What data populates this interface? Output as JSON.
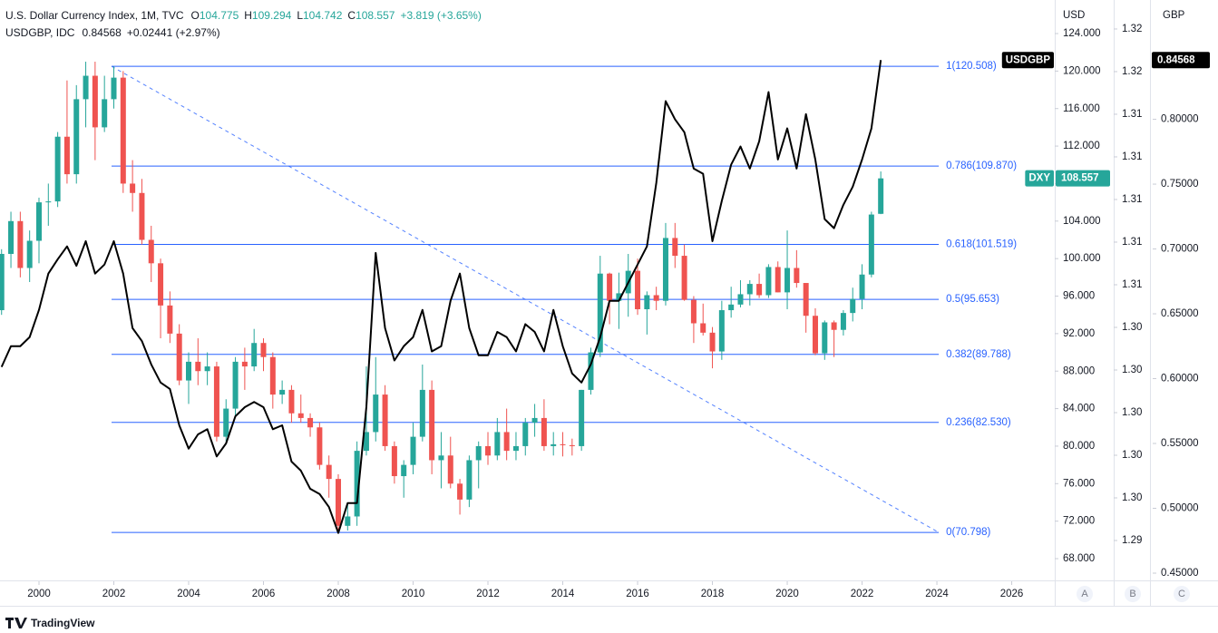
{
  "chart_data": {
    "type": "candlestick",
    "legend_header": {
      "dxy": {
        "title": "U.S. Dollar Currency Index, 1M, TVC",
        "fields": [
          {
            "label": "O",
            "value": "104.775"
          },
          {
            "label": "H",
            "value": "109.294"
          },
          {
            "label": "L",
            "value": "104.742"
          },
          {
            "label": "C",
            "value": "108.557"
          }
        ],
        "change": "+3.819 (+3.65%)"
      },
      "usdgbp": {
        "title": "USDGBP, IDC",
        "value": "0.84568",
        "change": "+0.02441 (+2.97%)"
      }
    },
    "x": [
      1999,
      1999.25,
      1999.5,
      1999.75,
      2000,
      2000.25,
      2000.5,
      2000.75,
      2001,
      2001.25,
      2001.5,
      2001.75,
      2002,
      2002.25,
      2002.5,
      2002.75,
      2003,
      2003.25,
      2003.5,
      2003.75,
      2004,
      2004.25,
      2004.5,
      2004.75,
      2005,
      2005.25,
      2005.5,
      2005.75,
      2006,
      2006.25,
      2006.5,
      2006.75,
      2007,
      2007.25,
      2007.5,
      2007.75,
      2008,
      2008.25,
      2008.5,
      2008.75,
      2009,
      2009.25,
      2009.5,
      2009.75,
      2010,
      2010.25,
      2010.5,
      2010.75,
      2011,
      2011.25,
      2011.5,
      2011.75,
      2012,
      2012.25,
      2012.5,
      2012.75,
      2013,
      2013.25,
      2013.5,
      2013.75,
      2014,
      2014.25,
      2014.5,
      2014.75,
      2015,
      2015.25,
      2015.5,
      2015.75,
      2016,
      2016.25,
      2016.5,
      2016.75,
      2017,
      2017.25,
      2017.5,
      2017.75,
      2018,
      2018.25,
      2018.5,
      2018.75,
      2019,
      2019.25,
      2019.5,
      2019.75,
      2020,
      2020.25,
      2020.5,
      2020.75,
      2021,
      2021.25,
      2021.5,
      2021.75,
      2022,
      2022.25,
      2022.5
    ],
    "series": [
      {
        "name": "DXY",
        "type": "candlestick",
        "axis": "y",
        "up_color": "#26a69a",
        "down_color": "#ef5350",
        "ohlc": [
          [
            94.5,
            101,
            94,
            100.5
          ],
          [
            100.5,
            105,
            99,
            104
          ],
          [
            104,
            105,
            98,
            99
          ],
          [
            99,
            103,
            97.5,
            101.9
          ],
          [
            101.9,
            106.5,
            99.5,
            106
          ],
          [
            106,
            108,
            103.5,
            106.1
          ],
          [
            106.1,
            113.5,
            105.5,
            113
          ],
          [
            113,
            119,
            108,
            109
          ],
          [
            109,
            118.5,
            108,
            117
          ],
          [
            117,
            121,
            114,
            119.5
          ],
          [
            119.5,
            121,
            110.5,
            114
          ],
          [
            114,
            119.5,
            113.5,
            117
          ],
          [
            117,
            120.5,
            116,
            119.3
          ],
          [
            119.3,
            120,
            107,
            108
          ],
          [
            108,
            110.5,
            105,
            107
          ],
          [
            107,
            108.5,
            101.5,
            102
          ],
          [
            102,
            103.5,
            97.5,
            99.5
          ],
          [
            99.5,
            100,
            91.5,
            95
          ],
          [
            95,
            96.5,
            91,
            92
          ],
          [
            92,
            93,
            86.5,
            87
          ],
          [
            87,
            90,
            84.5,
            89
          ],
          [
            89,
            91.5,
            86.5,
            88
          ],
          [
            88,
            90,
            86.5,
            88.5
          ],
          [
            88.5,
            89,
            80.5,
            81
          ],
          [
            81,
            85,
            80.5,
            84
          ],
          [
            84,
            89.5,
            83,
            89
          ],
          [
            89,
            90.5,
            86,
            88.5
          ],
          [
            88.5,
            92.5,
            88,
            91
          ],
          [
            91,
            91.5,
            88,
            89.5
          ],
          [
            89.5,
            90,
            84,
            85.5
          ],
          [
            85.5,
            87,
            84.5,
            86
          ],
          [
            86,
            86.5,
            82.5,
            83.5
          ],
          [
            83.5,
            85.5,
            82.5,
            83
          ],
          [
            83,
            83.5,
            81,
            82
          ],
          [
            82,
            82.5,
            77.5,
            78
          ],
          [
            78,
            79,
            74.5,
            76.5
          ],
          [
            76.5,
            77,
            70.7,
            71.5
          ],
          [
            71.5,
            74,
            71,
            72.5
          ],
          [
            72.5,
            80.5,
            71.5,
            79.5
          ],
          [
            79.5,
            88.5,
            79,
            81.5
          ],
          [
            81.5,
            89.5,
            80.5,
            85.5
          ],
          [
            85.5,
            86.5,
            79.5,
            80
          ],
          [
            80,
            80.5,
            76,
            76.8
          ],
          [
            76.8,
            78.5,
            74.5,
            78
          ],
          [
            78,
            82.5,
            77,
            81
          ],
          [
            81,
            88.7,
            80.5,
            86
          ],
          [
            86,
            87,
            77,
            78.5
          ],
          [
            78.5,
            81.5,
            75.5,
            79
          ],
          [
            79,
            81,
            75.5,
            76
          ],
          [
            76,
            76.5,
            72.7,
            74.3
          ],
          [
            74.3,
            79,
            73.5,
            78.5
          ],
          [
            78.5,
            80.5,
            75.5,
            80
          ],
          [
            80,
            81.5,
            78,
            79
          ],
          [
            79,
            83,
            78.5,
            81.5
          ],
          [
            81.5,
            84,
            78.5,
            79.5
          ],
          [
            79.5,
            81.5,
            78.5,
            80
          ],
          [
            80,
            83,
            79,
            82.5
          ],
          [
            82.5,
            84.5,
            81,
            83
          ],
          [
            83,
            85,
            79.5,
            80
          ],
          [
            80,
            81.5,
            79,
            80.2
          ],
          [
            80.2,
            81.5,
            78.9,
            80.1
          ],
          [
            80.1,
            80.8,
            79,
            80
          ],
          [
            80,
            86,
            79.5,
            86
          ],
          [
            86,
            90.5,
            85.5,
            90
          ],
          [
            90,
            100.3,
            89.5,
            98.4
          ],
          [
            98.4,
            98.5,
            93,
            95.5
          ],
          [
            95.5,
            98.5,
            92.5,
            96.3
          ],
          [
            96.3,
            100.5,
            93.8,
            98.7
          ],
          [
            98.7,
            100,
            94,
            94.6
          ],
          [
            94.6,
            96.5,
            91.9,
            96.1
          ],
          [
            96.1,
            97,
            94.5,
            95.5
          ],
          [
            95.5,
            103.8,
            95,
            102.2
          ],
          [
            102.2,
            103.8,
            99,
            100.3
          ],
          [
            100.3,
            101.5,
            95.5,
            95.6
          ],
          [
            95.6,
            96,
            91,
            93.1
          ],
          [
            93.1,
            95.2,
            91.8,
            92.1
          ],
          [
            92.1,
            92.7,
            88.3,
            90.1
          ],
          [
            90.1,
            95.5,
            89.2,
            94.5
          ],
          [
            94.5,
            97,
            93.7,
            95.1
          ],
          [
            95.1,
            97.7,
            94.8,
            96.2
          ],
          [
            96.2,
            97.7,
            95,
            97.3
          ],
          [
            97.3,
            98.4,
            95.8,
            96.1
          ],
          [
            96.1,
            99.4,
            95.8,
            99.1
          ],
          [
            99.1,
            99.7,
            96.4,
            96.4
          ],
          [
            96.4,
            103,
            94.6,
            99
          ],
          [
            99,
            100.9,
            96.9,
            97.4
          ],
          [
            97.4,
            97.4,
            92.1,
            93.9
          ],
          [
            93.9,
            94.7,
            89.7,
            89.9
          ],
          [
            89.9,
            93.4,
            89.2,
            93.2
          ],
          [
            93.2,
            93.4,
            89.5,
            92.4
          ],
          [
            92.4,
            94.5,
            91.8,
            94.2
          ],
          [
            94.2,
            96.9,
            93.3,
            95.7
          ],
          [
            95.7,
            99.4,
            94.6,
            98.3
          ],
          [
            98.3,
            105,
            98,
            104.7
          ],
          [
            104.775,
            109.294,
            104.742,
            108.557
          ]
        ],
        "last": 108.557
      },
      {
        "name": "USDGBP",
        "type": "line",
        "axis": "y3",
        "color": "#000000",
        "values": [
          0.609,
          0.625,
          0.625,
          0.632,
          0.653,
          0.681,
          0.692,
          0.702,
          0.687,
          0.706,
          0.681,
          0.688,
          0.706,
          0.681,
          0.639,
          0.629,
          0.611,
          0.597,
          0.592,
          0.564,
          0.546,
          0.557,
          0.561,
          0.54,
          0.55,
          0.571,
          0.578,
          0.582,
          0.578,
          0.561,
          0.564,
          0.536,
          0.529,
          0.515,
          0.511,
          0.501,
          0.481,
          0.504,
          0.504,
          0.578,
          0.697,
          0.639,
          0.614,
          0.625,
          0.632,
          0.653,
          0.621,
          0.625,
          0.66,
          0.681,
          0.639,
          0.618,
          0.618,
          0.636,
          0.632,
          0.621,
          0.642,
          0.636,
          0.621,
          0.653,
          0.625,
          0.604,
          0.597,
          0.611,
          0.632,
          0.66,
          0.66,
          0.674,
          0.688,
          0.702,
          0.751,
          0.814,
          0.8,
          0.79,
          0.762,
          0.758,
          0.706,
          0.737,
          0.765,
          0.779,
          0.762,
          0.783,
          0.821,
          0.769,
          0.793,
          0.762,
          0.804,
          0.769,
          0.723,
          0.716,
          0.734,
          0.748,
          0.769,
          0.793,
          0.84568
        ],
        "last": 0.84568
      }
    ],
    "xlim": [
      1998.958,
      2027.15
    ],
    "xticks": [
      2000,
      2002,
      2004,
      2006,
      2008,
      2010,
      2012,
      2014,
      2016,
      2018,
      2020,
      2022,
      2024,
      2026
    ],
    "y_label": "USD",
    "ylim": [
      65.68,
      127.58
    ],
    "yticks": [
      {
        "value": 68,
        "label": "68.000"
      },
      {
        "value": 72,
        "label": "72.000"
      },
      {
        "value": 76,
        "label": "76.000"
      },
      {
        "value": 80,
        "label": "80.000"
      },
      {
        "value": 84,
        "label": "84.000"
      },
      {
        "value": 88,
        "label": "88.000"
      },
      {
        "value": 92,
        "label": "92.000"
      },
      {
        "value": 96,
        "label": "96.000"
      },
      {
        "value": 100,
        "label": "100.000"
      },
      {
        "value": 104,
        "label": "104.000"
      },
      {
        "value": 108,
        "label": "108.000"
      },
      {
        "value": 112,
        "label": "112.000"
      },
      {
        "value": 116,
        "label": "116.000"
      },
      {
        "value": 120,
        "label": "120.000"
      },
      {
        "value": 124,
        "label": "124.000"
      }
    ],
    "y2lim": [
      1.28766,
      1.3217
    ],
    "y2ticks": [
      {
        "value": 1.29,
        "label": "1.29"
      },
      {
        "value": 1.2925,
        "label": "1.30"
      },
      {
        "value": 1.295,
        "label": "1.30"
      },
      {
        "value": 1.2975,
        "label": "1.30"
      },
      {
        "value": 1.3,
        "label": "1.30"
      },
      {
        "value": 1.3025,
        "label": "1.30"
      },
      {
        "value": 1.305,
        "label": "1.31"
      },
      {
        "value": 1.3075,
        "label": "1.31"
      },
      {
        "value": 1.31,
        "label": "1.31"
      },
      {
        "value": 1.3125,
        "label": "1.31"
      },
      {
        "value": 1.315,
        "label": "1.31"
      },
      {
        "value": 1.3175,
        "label": "1.32"
      },
      {
        "value": 1.32,
        "label": "1.32"
      }
    ],
    "y3_label": "GBP",
    "y3lim": [
      0.4444,
      0.892
    ],
    "y3ticks": [
      {
        "value": 0.45,
        "label": "0.45000"
      },
      {
        "value": 0.5,
        "label": "0.50000"
      },
      {
        "value": 0.55,
        "label": "0.55000"
      },
      {
        "value": 0.6,
        "label": "0.60000"
      },
      {
        "value": 0.65,
        "label": "0.65000"
      },
      {
        "value": 0.7,
        "label": "0.70000"
      },
      {
        "value": 0.75,
        "label": "0.75000"
      },
      {
        "value": 0.8,
        "label": "0.80000"
      }
    ],
    "fib": {
      "color": "#2962ff",
      "x_range": [
        2001.94,
        2024.05
      ],
      "levels": [
        {
          "label": "1(120.508)",
          "value": 120.508
        },
        {
          "label": "0.786(109.870)",
          "value": 109.87
        },
        {
          "label": "0.618(101.519)",
          "value": 101.519
        },
        {
          "label": "0.5(95.653)",
          "value": 95.653
        },
        {
          "label": "0.382(89.788)",
          "value": 89.788
        },
        {
          "label": "0.236(82.530)",
          "value": 82.53
        },
        {
          "label": "0(70.798)",
          "value": 70.798
        }
      ]
    },
    "axis_buttons": [
      "A",
      "B",
      "C"
    ],
    "brand": "TradingView"
  }
}
